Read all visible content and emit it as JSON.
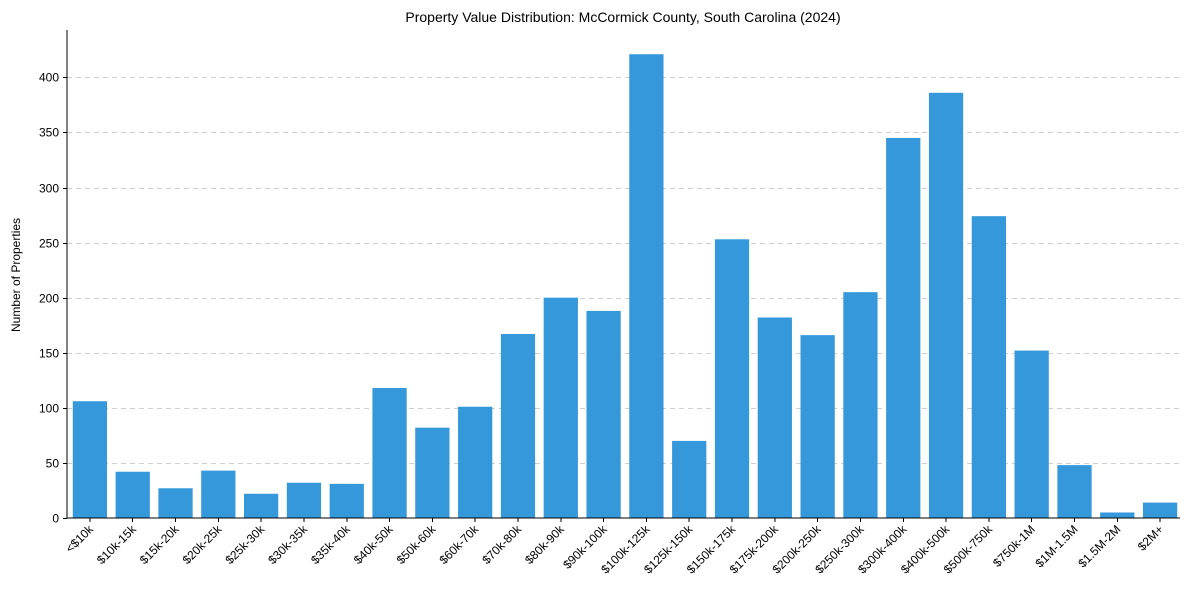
{
  "chart_data": {
    "type": "bar",
    "title": "Property Value Distribution: McCormick County, South Carolina (2024)",
    "xlabel": "",
    "ylabel": "Number of Properties",
    "ylim": [
      0,
      443
    ],
    "yticks": [
      0,
      50,
      100,
      150,
      200,
      250,
      300,
      350,
      400
    ],
    "grid": "y-dashed",
    "bar_color": "#3498db",
    "categories": [
      "<$10k",
      "$10k-15k",
      "$15k-20k",
      "$20k-25k",
      "$25k-30k",
      "$30k-35k",
      "$35k-40k",
      "$40k-50k",
      "$50k-60k",
      "$60k-70k",
      "$70k-80k",
      "$80k-90k",
      "$90k-100k",
      "$100k-125k",
      "$125k-150k",
      "$150k-175k",
      "$175k-200k",
      "$200k-250k",
      "$250k-300k",
      "$300k-400k",
      "$400k-500k",
      "$500k-750k",
      "$750k-1M",
      "$1M-1.5M",
      "$1.5M-2M",
      "$2M+"
    ],
    "values": [
      106,
      42,
      27,
      43,
      22,
      32,
      31,
      118,
      82,
      101,
      167,
      200,
      188,
      421,
      70,
      253,
      182,
      166,
      205,
      345,
      386,
      274,
      152,
      48,
      5,
      14
    ]
  }
}
